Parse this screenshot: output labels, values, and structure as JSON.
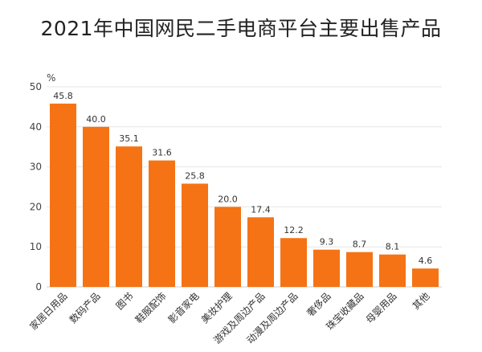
{
  "chart_data": {
    "type": "bar",
    "title": "2021年中国网民二手电商平台主要出售产品",
    "ylabel": "%",
    "xlabel": "",
    "ylim": [
      0,
      50
    ],
    "yticks": [
      0,
      10,
      20,
      30,
      40,
      50
    ],
    "grid": true,
    "bar_color": "#f57314",
    "categories": [
      "家居日用品",
      "数码产品",
      "图书",
      "鞋服配饰",
      "影音家电",
      "美妆护理",
      "游戏及周边产品",
      "动漫及周边产品",
      "奢侈品",
      "珠宝收藏品",
      "母婴用品",
      "其他"
    ],
    "values": [
      45.8,
      40.0,
      35.1,
      31.6,
      25.8,
      20.0,
      17.4,
      12.2,
      9.3,
      8.7,
      8.1,
      4.6
    ],
    "value_labels": [
      "45.8",
      "40.0",
      "35.1",
      "31.6",
      "25.8",
      "20.0",
      "17.4",
      "12.2",
      "9.3",
      "8.7",
      "8.1",
      "4.6"
    ]
  }
}
